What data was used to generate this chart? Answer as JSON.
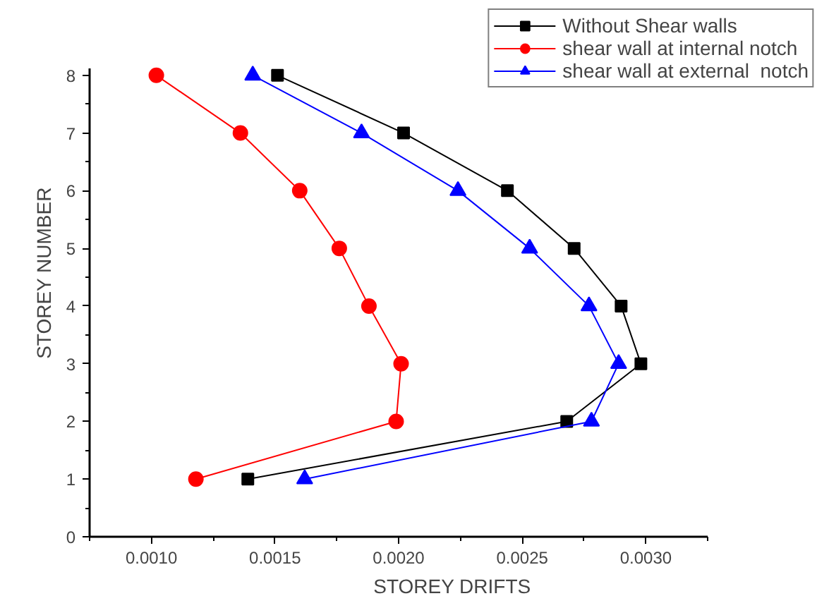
{
  "chart_data": {
    "type": "line",
    "xlabel": "STOREY DRIFTS",
    "ylabel": "STOREY NUMBER",
    "xlim": [
      0.00075,
      0.00325
    ],
    "ylim": [
      0,
      8.12
    ],
    "xticks": [
      {
        "value": 0.001,
        "label": "0.0010"
      },
      {
        "value": 0.0015,
        "label": "0.0015"
      },
      {
        "value": 0.002,
        "label": "0.0020"
      },
      {
        "value": 0.0025,
        "label": "0.0025"
      },
      {
        "value": 0.003,
        "label": "0.0030"
      }
    ],
    "yticks": [
      0,
      1,
      2,
      3,
      4,
      5,
      6,
      7,
      8
    ],
    "grid": false,
    "legend": "top right",
    "line_style": "solid",
    "series": [
      {
        "name": "Without Shear walls",
        "color": "#000000",
        "marker": "square",
        "x": [
          0.00139,
          0.00268,
          0.00298,
          0.0029,
          0.00271,
          0.00244,
          0.00202,
          0.00151
        ],
        "values": [
          1,
          2,
          3,
          4,
          5,
          6,
          7,
          8
        ]
      },
      {
        "name": "shear wall at internal notch",
        "color": "#ff0000",
        "marker": "circle",
        "x": [
          0.00118,
          0.00199,
          0.00201,
          0.00188,
          0.00176,
          0.0016,
          0.00136,
          0.00102
        ],
        "values": [
          1,
          2,
          3,
          4,
          5,
          6,
          7,
          8
        ]
      },
      {
        "name": "shear wall at external  notch",
        "color": "#0000ff",
        "marker": "triangle",
        "x": [
          0.00162,
          0.00278,
          0.00289,
          0.00277,
          0.00253,
          0.00224,
          0.00185,
          0.00141
        ],
        "values": [
          1,
          2,
          3,
          4,
          5,
          6,
          7,
          8
        ]
      }
    ]
  }
}
